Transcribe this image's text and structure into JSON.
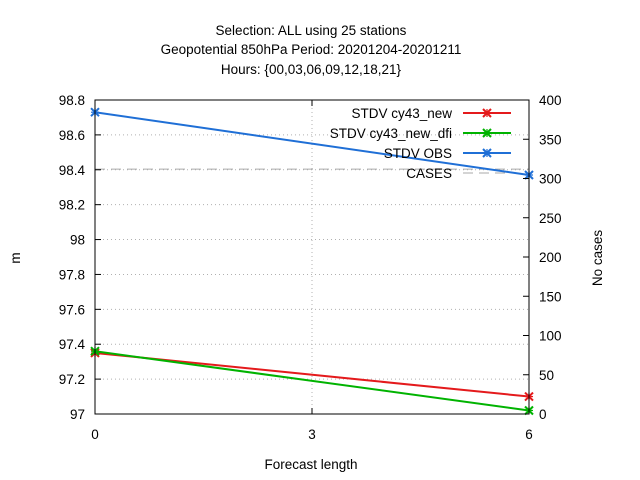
{
  "chart_data": {
    "type": "line",
    "title_lines": [
      "Selection: ALL using    25 stations",
      "Geopotential 850hPa   Period: 20201204-20201211",
      "Hours: {00,03,06,09,12,18,21}"
    ],
    "xlabel": "Forecast length",
    "ylabel": "m",
    "y2label": "No cases",
    "x": [
      0,
      6
    ],
    "xlim": [
      0,
      6
    ],
    "xticks": [
      "0",
      "3",
      "6"
    ],
    "ylim": [
      97,
      98.8
    ],
    "yticks": [
      "97",
      "97.2",
      "97.4",
      "97.6",
      "97.8",
      "98",
      "98.2",
      "98.4",
      "98.6",
      "98.8"
    ],
    "y2lim": [
      0,
      400
    ],
    "y2ticks": [
      "0",
      "50",
      "100",
      "150",
      "200",
      "250",
      "300",
      "350",
      "400"
    ],
    "grid": true,
    "legend_position": "top-right",
    "series": [
      {
        "name": "STDV cy43_new",
        "axis": "y",
        "color": "#e41a1c",
        "marker": "x",
        "values": [
          97.35,
          97.1
        ]
      },
      {
        "name": "STDV cy43_new_dfi",
        "axis": "y",
        "color": "#00b300",
        "marker": "x",
        "values": [
          97.36,
          97.02
        ]
      },
      {
        "name": "STDV OBS",
        "axis": "y",
        "color": "#1f6fd6",
        "marker": "x",
        "values": [
          98.73,
          98.37
        ]
      },
      {
        "name": "CASES",
        "axis": "y2",
        "color": "#aaaaaa",
        "marker": "none",
        "dashed": true,
        "values": [
          312,
          312
        ]
      }
    ]
  }
}
